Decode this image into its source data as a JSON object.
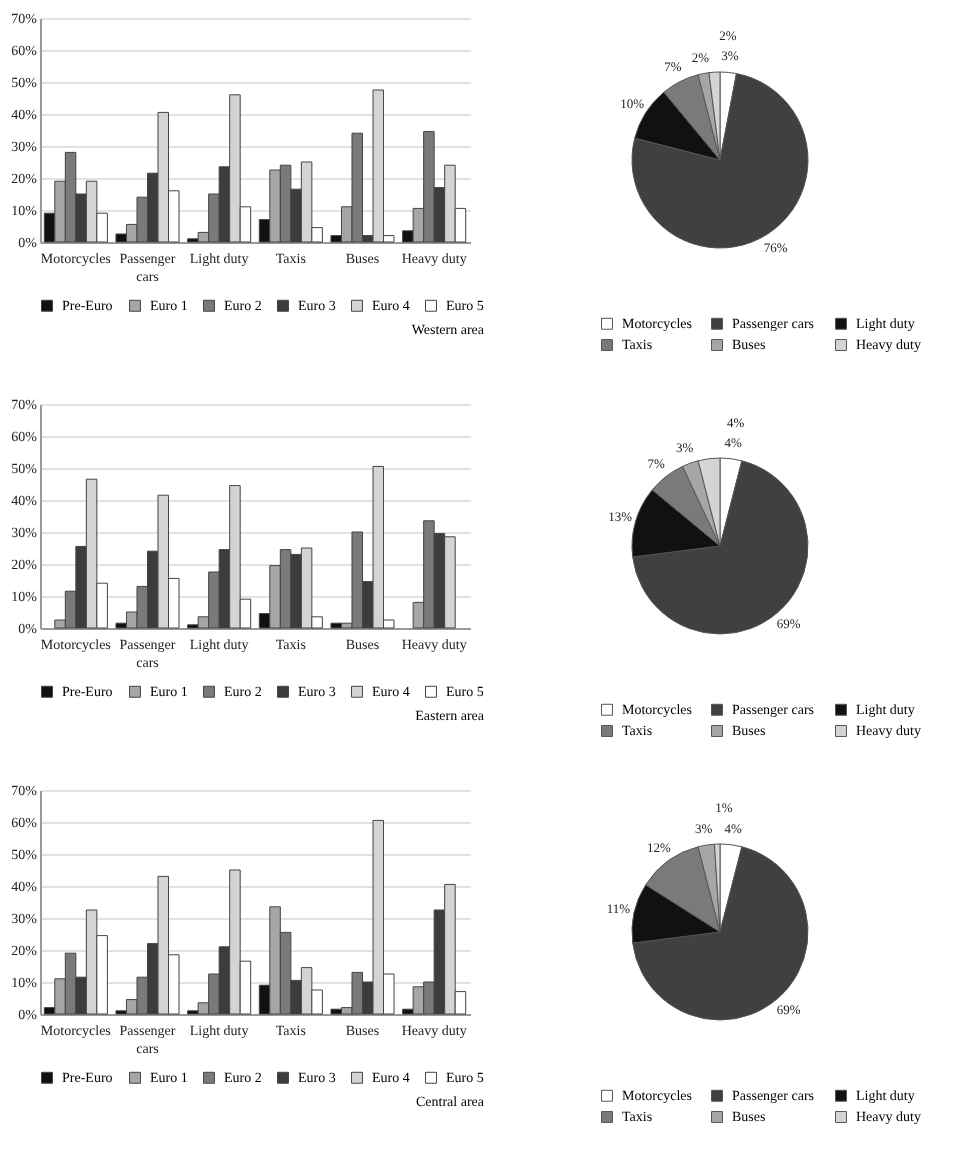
{
  "chart_data": [
    {
      "type": "bar",
      "annotations": [
        "Western area"
      ],
      "categories": [
        "Motorcycles",
        "Passenger cars",
        "Light duty",
        "Taxis",
        "Buses",
        "Heavy duty"
      ],
      "series": [
        {
          "name": "Pre-Euro",
          "color": "#111111",
          "values": [
            9,
            2.5,
            1,
            7,
            2,
            3.5
          ]
        },
        {
          "name": "Euro 1",
          "color": "#a6a6a6",
          "values": [
            19,
            5.5,
            3,
            22.5,
            11,
            10.5
          ]
        },
        {
          "name": "Euro 2",
          "color": "#7a7a7a",
          "values": [
            28,
            14,
            15,
            24,
            34,
            34.5
          ]
        },
        {
          "name": "Euro 3",
          "color": "#3c3c3c",
          "values": [
            15,
            21.5,
            23.5,
            16.5,
            2,
            17
          ]
        },
        {
          "name": "Euro 4",
          "color": "#d4d4d4",
          "values": [
            19,
            40.5,
            46,
            25,
            47.5,
            24
          ]
        },
        {
          "name": "Euro 5",
          "color": "#ffffff",
          "values": [
            9,
            16,
            11,
            4.5,
            2,
            10.5
          ]
        }
      ],
      "ylim": [
        0,
        70
      ],
      "yticks": [
        {
          "value": 0,
          "label": "0%"
        },
        {
          "value": 10,
          "label": "10%"
        },
        {
          "value": 20,
          "label": "20%"
        },
        {
          "value": 30,
          "label": "30%"
        },
        {
          "value": 40,
          "label": "40%"
        },
        {
          "value": 50,
          "label": "50%"
        },
        {
          "value": 60,
          "label": "60%"
        },
        {
          "value": 70,
          "label": "70%"
        }
      ],
      "grid": "y",
      "legend": "bottom"
    },
    {
      "type": "pie",
      "categories": [
        "Motorcycles",
        "Passenger cars",
        "Light duty",
        "Taxis",
        "Buses",
        "Heavy duty"
      ],
      "values": [
        3,
        76,
        10,
        7,
        2,
        2
      ],
      "value_labels": [
        "3%",
        "76%",
        "10%",
        "7%",
        "2%",
        "2%"
      ],
      "colors": [
        "#ffffff",
        "#404040",
        "#111111",
        "#7a7a7a",
        "#a6a6a6",
        "#d4d4d4"
      ],
      "legend": "bottom"
    },
    {
      "type": "bar",
      "annotations": [
        "Eastern area"
      ],
      "categories": [
        "Motorcycles",
        "Passenger cars",
        "Light duty",
        "Taxis",
        "Buses",
        "Heavy duty"
      ],
      "series": [
        {
          "name": "Pre-Euro",
          "color": "#111111",
          "values": [
            null,
            1.5,
            1,
            4.5,
            1.5,
            null
          ]
        },
        {
          "name": "Euro 1",
          "color": "#a6a6a6",
          "values": [
            2.5,
            5,
            3.5,
            19.5,
            1.5,
            8
          ]
        },
        {
          "name": "Euro 2",
          "color": "#7a7a7a",
          "values": [
            11.5,
            13,
            17.5,
            24.5,
            30,
            33.5
          ]
        },
        {
          "name": "Euro 3",
          "color": "#3c3c3c",
          "values": [
            25.5,
            24,
            24.5,
            23,
            14.5,
            29.5
          ]
        },
        {
          "name": "Euro 4",
          "color": "#d4d4d4",
          "values": [
            46.5,
            41.5,
            44.5,
            25,
            50.5,
            28.5
          ]
        },
        {
          "name": "Euro 5",
          "color": "#ffffff",
          "values": [
            14,
            15.5,
            9,
            3.5,
            2.5,
            null
          ]
        }
      ],
      "ylim": [
        0,
        70
      ],
      "yticks": [
        {
          "value": 0,
          "label": "0%"
        },
        {
          "value": 10,
          "label": "10%"
        },
        {
          "value": 20,
          "label": "20%"
        },
        {
          "value": 30,
          "label": "30%"
        },
        {
          "value": 40,
          "label": "40%"
        },
        {
          "value": 50,
          "label": "50%"
        },
        {
          "value": 60,
          "label": "60%"
        },
        {
          "value": 70,
          "label": "70%"
        }
      ],
      "grid": "y",
      "legend": "bottom"
    },
    {
      "type": "pie",
      "categories": [
        "Motorcycles",
        "Passenger cars",
        "Light duty",
        "Taxis",
        "Buses",
        "Heavy duty"
      ],
      "values": [
        4,
        69,
        13,
        7,
        3,
        4
      ],
      "value_labels": [
        "4%",
        "69%",
        "13%",
        "7%",
        "3%",
        "4%"
      ],
      "colors": [
        "#ffffff",
        "#404040",
        "#111111",
        "#7a7a7a",
        "#a6a6a6",
        "#d4d4d4"
      ],
      "legend": "bottom"
    },
    {
      "type": "bar",
      "annotations": [
        "Central area"
      ],
      "categories": [
        "Motorcycles",
        "Passenger cars",
        "Light duty",
        "Taxis",
        "Buses",
        "Heavy duty"
      ],
      "series": [
        {
          "name": "Pre-Euro",
          "color": "#111111",
          "values": [
            2,
            1,
            1,
            9,
            1.5,
            1.5
          ]
        },
        {
          "name": "Euro 1",
          "color": "#a6a6a6",
          "values": [
            11,
            4.5,
            3.5,
            33.5,
            2,
            8.5
          ]
        },
        {
          "name": "Euro 2",
          "color": "#7a7a7a",
          "values": [
            19,
            11.5,
            12.5,
            25.5,
            13,
            10
          ]
        },
        {
          "name": "Euro 3",
          "color": "#3c3c3c",
          "values": [
            11.5,
            22,
            21,
            10.5,
            10,
            32.5
          ]
        },
        {
          "name": "Euro 4",
          "color": "#d4d4d4",
          "values": [
            32.5,
            43,
            45,
            14.5,
            60.5,
            40.5
          ]
        },
        {
          "name": "Euro 5",
          "color": "#ffffff",
          "values": [
            24.5,
            18.5,
            16.5,
            7.5,
            12.5,
            7
          ]
        }
      ],
      "ylim": [
        0,
        70
      ],
      "yticks": [
        {
          "value": 0,
          "label": "0%"
        },
        {
          "value": 10,
          "label": "10%"
        },
        {
          "value": 20,
          "label": "20%"
        },
        {
          "value": 30,
          "label": "30%"
        },
        {
          "value": 40,
          "label": "40%"
        },
        {
          "value": 50,
          "label": "50%"
        },
        {
          "value": 60,
          "label": "60%"
        },
        {
          "value": 70,
          "label": "70%"
        }
      ],
      "grid": "y",
      "legend": "bottom"
    },
    {
      "type": "pie",
      "categories": [
        "Motorcycles",
        "Passenger cars",
        "Light duty",
        "Taxis",
        "Buses",
        "Heavy duty"
      ],
      "values": [
        4,
        69,
        11,
        12,
        3,
        1
      ],
      "value_labels": [
        "4%",
        "69%",
        "11%",
        "12%",
        "3%",
        "1%"
      ],
      "colors": [
        "#ffffff",
        "#404040",
        "#111111",
        "#7a7a7a",
        "#a6a6a6",
        "#d4d4d4"
      ],
      "legend": "bottom"
    }
  ]
}
